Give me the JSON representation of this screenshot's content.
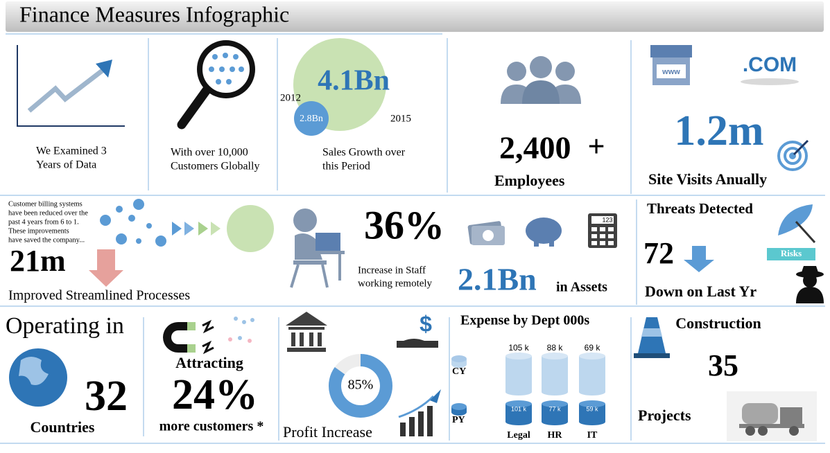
{
  "header": {
    "title": "Finance Measures Infographic"
  },
  "row1": {
    "examined": {
      "lines": [
        "We Examined 3",
        "Years of Data"
      ]
    },
    "customers": {
      "lines": [
        "With over 10,000",
        "Customers Globally"
      ]
    },
    "sales": {
      "current": "4.1Bn",
      "current_year": "2015",
      "previous": "2.8Bn",
      "previous_year": "2012",
      "lines": [
        "Sales Growth over",
        "this Period"
      ]
    },
    "employees": {
      "value": "2,400",
      "plus": "+",
      "label": "Employees"
    },
    "site": {
      "icon_left": "www",
      "icon_right": ".COM",
      "value": "1.2m",
      "label": "Site Visits Anually"
    }
  },
  "row2": {
    "processes": {
      "lines": [
        "Customer billing systems",
        "have been reduced over the",
        "past 4 years from 6 to 1.",
        "These improvements",
        "have saved the company..."
      ],
      "value": "21m",
      "label": "Improved Streamlined Processes"
    },
    "remote": {
      "value": "36%",
      "lines": [
        "Increase in Staff",
        "working remotely"
      ]
    },
    "assets": {
      "calculator": "123",
      "value": "2.1Bn",
      "label": "in Assets"
    },
    "threats": {
      "title": "Threats Detected",
      "badge": "Risks",
      "value": "72",
      "label": "Down on Last Yr"
    }
  },
  "row3": {
    "countries": {
      "title": "Operating in",
      "value": "32",
      "label": "Countries"
    },
    "customers": {
      "title": "Attracting",
      "value": "24%",
      "label": "more customers *"
    },
    "profit": {
      "icon": "$",
      "donut": {
        "value": 85,
        "label": "85%"
      },
      "label": "Profit Increase"
    },
    "expense": {
      "title": "Expense by Dept 000s",
      "legend": [
        "CY",
        "PY"
      ],
      "categories": [
        "Legal",
        "HR",
        "IT"
      ],
      "cy": [
        "105 k",
        "88 k",
        "69 k"
      ],
      "py": [
        "101 k",
        "77 k",
        "59 k"
      ]
    },
    "construction": {
      "title": "Construction",
      "value": "35",
      "label": "Projects"
    }
  }
}
